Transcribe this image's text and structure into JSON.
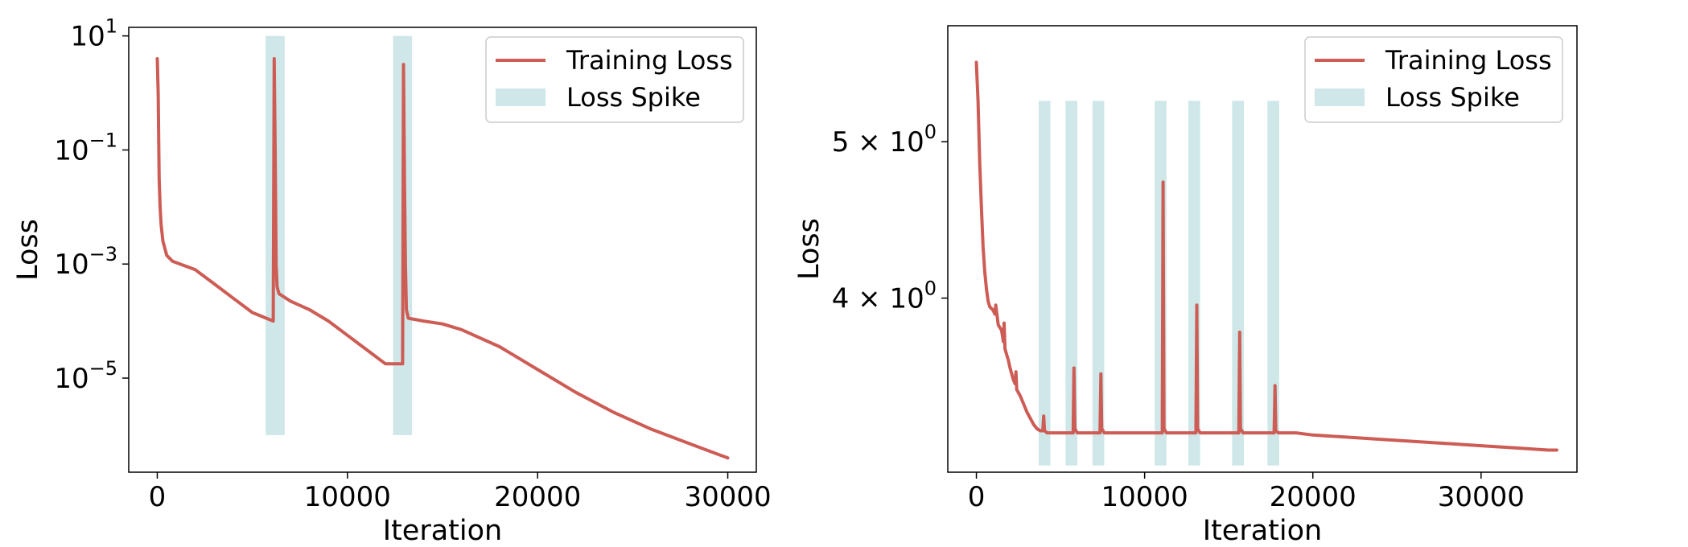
{
  "colors": {
    "loss": "#cd5c55",
    "spike": "#cfe7e8",
    "axis": "#000000"
  },
  "chart_data": [
    {
      "type": "line",
      "xlabel": "Iteration",
      "ylabel": "Loss",
      "y_scale": "log",
      "xlim": [
        -1500,
        31500
      ],
      "ylim_log10": [
        -6.65,
        1.15
      ],
      "x_ticks": [
        0,
        10000,
        20000,
        30000
      ],
      "x_tick_labels": [
        "0",
        "10000",
        "20000",
        "30000"
      ],
      "y_ticks_log10": [
        1,
        -1,
        -3,
        -5
      ],
      "y_tick_labels": [
        {
          "base": "10",
          "exp": "1"
        },
        {
          "base": "10",
          "exp": "−1"
        },
        {
          "base": "10",
          "exp": "−3"
        },
        {
          "base": "10",
          "exp": "−5"
        }
      ],
      "legend": {
        "position": "top-right",
        "entries": [
          "Training Loss",
          "Loss Spike"
        ]
      },
      "spike_regions": [
        {
          "x0": 5700,
          "x1": 6700,
          "y0_log10": -6.0,
          "y1_log10": 1.0
        },
        {
          "x0": 12400,
          "x1": 13400,
          "y0_log10": -6.0,
          "y1_log10": 1.0
        }
      ],
      "series": [
        {
          "name": "Training Loss",
          "x": [
            0,
            50,
            100,
            150,
            200,
            300,
            500,
            800,
            1200,
            2000,
            3000,
            4000,
            5000,
            6100,
            6150,
            6200,
            6250,
            6300,
            6400,
            7000,
            8000,
            9000,
            10000,
            11000,
            12000,
            12900,
            12950,
            13000,
            13050,
            13100,
            13200,
            14000,
            15000,
            16000,
            17000,
            18000,
            20000,
            22000,
            24000,
            26000,
            28000,
            30000
          ],
          "log10_y": [
            0.6,
            0.0,
            -1.5,
            -2.0,
            -2.3,
            -2.6,
            -2.85,
            -2.95,
            -3.0,
            -3.1,
            -3.35,
            -3.6,
            -3.85,
            -4.0,
            0.6,
            -1.0,
            -3.0,
            -3.4,
            -3.52,
            -3.65,
            -3.8,
            -4.0,
            -4.25,
            -4.5,
            -4.75,
            -4.75,
            0.5,
            -1.5,
            -3.0,
            -3.8,
            -3.95,
            -4.0,
            -4.05,
            -4.15,
            -4.3,
            -4.45,
            -4.85,
            -5.25,
            -5.6,
            -5.9,
            -6.15,
            -6.4
          ]
        }
      ]
    },
    {
      "type": "line",
      "xlabel": "Iteration",
      "ylabel": "Loss",
      "y_scale": "log",
      "xlim": [
        -1700,
        35700
      ],
      "ylim": [
        3.12,
        5.9
      ],
      "x_ticks": [
        0,
        10000,
        20000,
        30000
      ],
      "x_tick_labels": [
        "0",
        "10000",
        "20000",
        "30000"
      ],
      "y_ticks": [
        5,
        4
      ],
      "y_tick_labels": [
        {
          "base": "5 × 10",
          "exp": "0"
        },
        {
          "base": "4 × 10",
          "exp": "0"
        }
      ],
      "legend": {
        "position": "top-right",
        "entries": [
          "Training Loss",
          "Loss Spike"
        ]
      },
      "spike_regions": [
        {
          "x0": 3700,
          "x1": 4400,
          "y0": 3.15,
          "y1": 5.3
        },
        {
          "x0": 5300,
          "x1": 6000,
          "y0": 3.15,
          "y1": 5.3
        },
        {
          "x0": 6900,
          "x1": 7600,
          "y0": 3.15,
          "y1": 5.3
        },
        {
          "x0": 10600,
          "x1": 11300,
          "y0": 3.15,
          "y1": 5.3
        },
        {
          "x0": 12600,
          "x1": 13300,
          "y0": 3.15,
          "y1": 5.3
        },
        {
          "x0": 15200,
          "x1": 15900,
          "y0": 3.15,
          "y1": 5.3
        },
        {
          "x0": 17300,
          "x1": 18000,
          "y0": 3.15,
          "y1": 5.3
        }
      ],
      "series": [
        {
          "name": "Training Loss",
          "x": [
            0,
            100,
            200,
            300,
            400,
            500,
            600,
            700,
            800,
            1000,
            1100,
            1150,
            1300,
            1500,
            1600,
            1650,
            1700,
            1900,
            2000,
            2200,
            2300,
            2350,
            2400,
            2600,
            2800,
            3000,
            3200,
            3400,
            3600,
            3800,
            3950,
            4000,
            4050,
            4200,
            4500,
            5000,
            5500,
            5750,
            5800,
            5850,
            6000,
            6500,
            7000,
            7350,
            7400,
            7450,
            7600,
            8000,
            9000,
            10000,
            10800,
            11050,
            11100,
            11150,
            11300,
            12000,
            12800,
            13050,
            13100,
            13150,
            13300,
            14000,
            15000,
            15600,
            15650,
            15700,
            15850,
            16500,
            17000,
            17700,
            17750,
            17800,
            17950,
            19000,
            20000,
            22000,
            24000,
            26000,
            28000,
            30000,
            32000,
            34000,
            34500
          ],
          "y": [
            5.6,
            5.3,
            4.85,
            4.55,
            4.3,
            4.15,
            4.05,
            3.98,
            3.95,
            3.93,
            3.91,
            3.96,
            3.85,
            3.82,
            3.76,
            3.86,
            3.72,
            3.66,
            3.62,
            3.56,
            3.54,
            3.6,
            3.51,
            3.48,
            3.44,
            3.4,
            3.37,
            3.34,
            3.32,
            3.31,
            3.31,
            3.38,
            3.31,
            3.3,
            3.3,
            3.3,
            3.3,
            3.3,
            3.62,
            3.32,
            3.3,
            3.3,
            3.3,
            3.3,
            3.59,
            3.32,
            3.3,
            3.3,
            3.3,
            3.3,
            3.3,
            3.3,
            4.72,
            3.32,
            3.3,
            3.3,
            3.3,
            3.3,
            3.96,
            3.32,
            3.3,
            3.3,
            3.3,
            3.3,
            3.81,
            3.32,
            3.3,
            3.3,
            3.3,
            3.3,
            3.53,
            3.31,
            3.3,
            3.3,
            3.29,
            3.28,
            3.27,
            3.26,
            3.25,
            3.24,
            3.23,
            3.22,
            3.22
          ]
        }
      ]
    }
  ]
}
